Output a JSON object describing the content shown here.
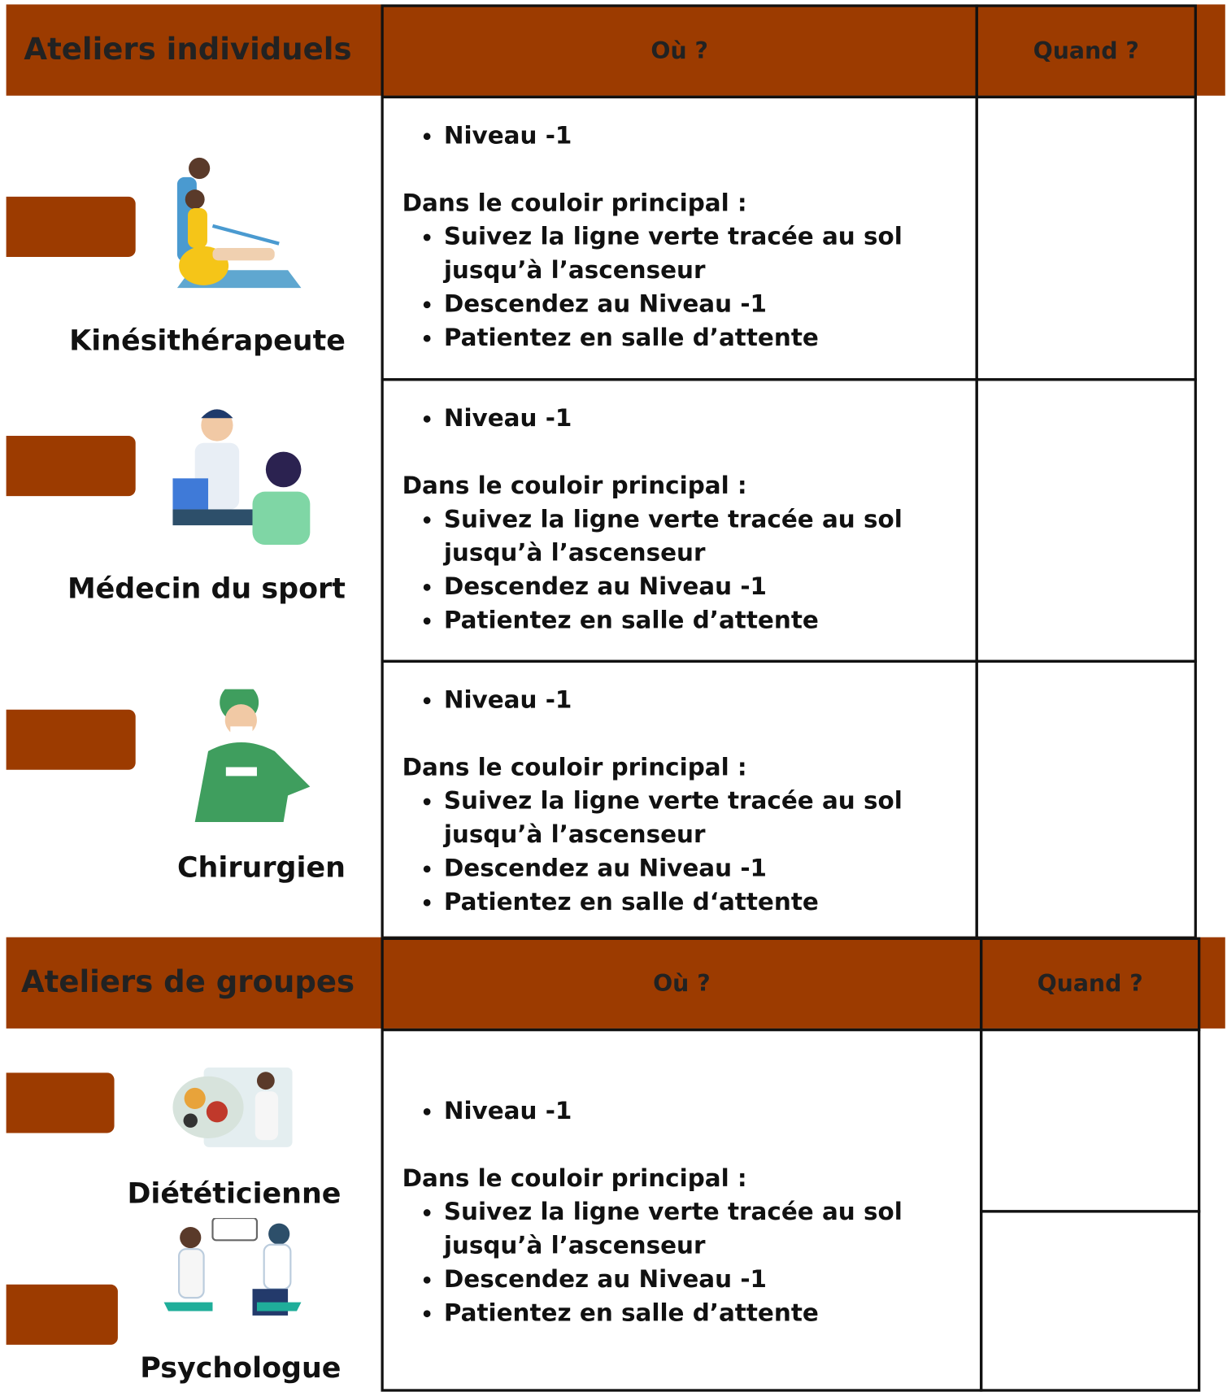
{
  "sections": [
    {
      "header": {
        "title": "Ateliers individuels",
        "where": "Où ?",
        "when": "Quand ?"
      },
      "rows": [
        {
          "labels": [
            "Kinésithérapeute"
          ],
          "level": "Niveau -1",
          "intro": "Dans le couloir principal :",
          "steps": [
            "Suivez la ligne verte tracée au sol jusqu’à l’ascenseur",
            "Descendez au Niveau -1",
            "Patientez en salle d’attente"
          ]
        },
        {
          "labels": [
            "Médecin du sport"
          ],
          "level": "Niveau -1",
          "intro": "Dans le couloir principal :",
          "steps": [
            "Suivez la ligne verte tracée au sol jusqu’à l’ascenseur",
            "Descendez au Niveau -1",
            "Patientez en salle d’attente"
          ]
        },
        {
          "labels": [
            "Chirurgien"
          ],
          "level": "Niveau -1",
          "intro": "Dans le couloir principal :",
          "steps": [
            "Suivez la ligne verte tracée au sol jusqu’à l’ascenseur",
            "Descendez au Niveau -1",
            "Patientez en salle d‘attente"
          ]
        }
      ]
    },
    {
      "header": {
        "title": "Ateliers de groupes",
        "where": "Où ?",
        "when": "Quand ?"
      },
      "rows": [
        {
          "labels": [
            "Diététicienne",
            "Psychologue"
          ],
          "level": "Niveau -1",
          "intro": "Dans le couloir principal :",
          "steps": [
            "Suivez la ligne verte tracée au sol jusqu’à l’ascenseur",
            "Descendez au Niveau -1",
            "Patientez en salle d’attente"
          ]
        }
      ]
    }
  ]
}
